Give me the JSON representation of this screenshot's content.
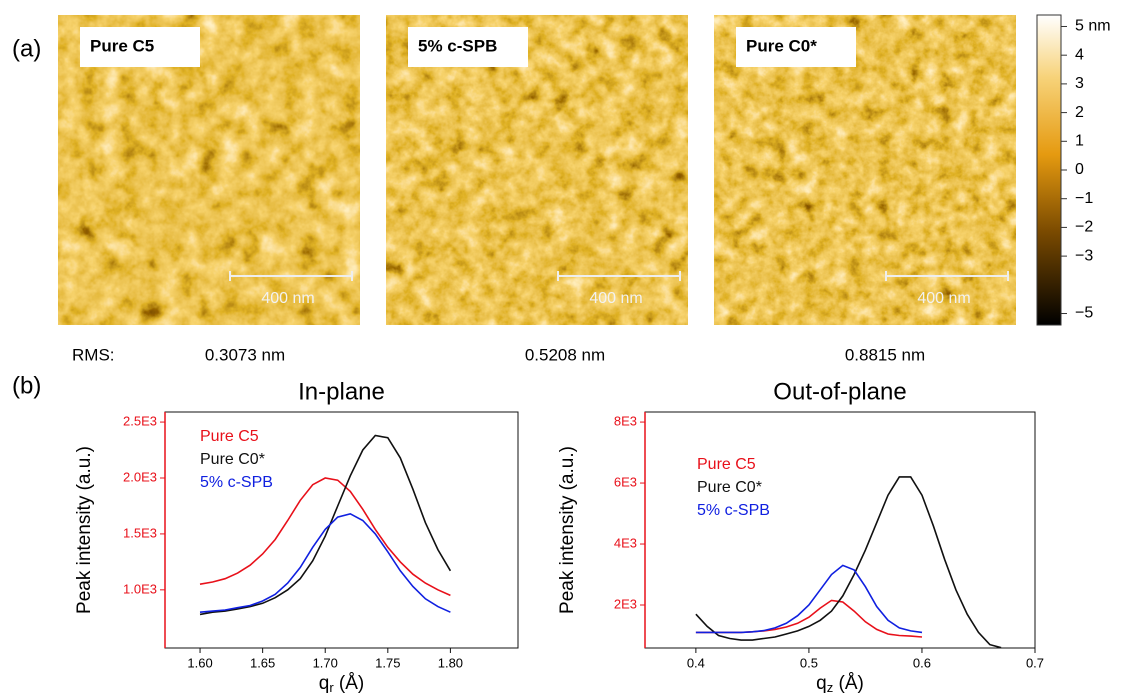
{
  "panel_a": {
    "label": "(a)",
    "rms_label": "RMS:",
    "images": [
      {
        "title": "Pure C5",
        "scale_bar": "400 nm",
        "rms": "0.3073 nm"
      },
      {
        "title": "5% c-SPB",
        "scale_bar": "400 nm",
        "rms": "0.5208 nm"
      },
      {
        "title": "Pure C0*",
        "scale_bar": "400 nm",
        "rms": "0.8815 nm"
      }
    ],
    "colorbar": {
      "ylim": [
        -5.4,
        5.4
      ],
      "ticks": [
        {
          "value": 5,
          "label": "5 nm"
        },
        4,
        3,
        2,
        1,
        0,
        {
          "value": -1,
          "label": "−1"
        },
        {
          "value": -2,
          "label": "−2"
        },
        {
          "value": -3,
          "label": "−3"
        },
        {
          "value": -5,
          "label": "−5"
        }
      ]
    }
  },
  "panel_b": {
    "label": "(b)"
  },
  "chart_data": [
    {
      "type": "line",
      "title": "In-plane",
      "y_label": "Peak intensity (a.u.)",
      "x_label": {
        "text": "q",
        "sub": "r",
        "unit": " (Å)"
      },
      "x": [
        1.6,
        1.61,
        1.62,
        1.63,
        1.64,
        1.65,
        1.66,
        1.67,
        1.68,
        1.69,
        1.7,
        1.71,
        1.72,
        1.73,
        1.74,
        1.75,
        1.76,
        1.77,
        1.78,
        1.79,
        1.8
      ],
      "xlim": [
        1.572,
        1.854
      ],
      "xticks": [
        {
          "value": 1.6,
          "label": "1.60"
        },
        1.65,
        {
          "value": 1.7,
          "label": "1.70"
        },
        1.75,
        {
          "value": 1.8,
          "label": "1.80"
        }
      ],
      "ylim": [
        480,
        2590
      ],
      "yticks": [
        {
          "value": 1000,
          "label": "1.0E3"
        },
        {
          "value": 1500,
          "label": "1.5E3"
        },
        {
          "value": 2000,
          "label": "2.0E3"
        },
        {
          "value": 2500,
          "label": "2.5E3"
        }
      ],
      "axis_color": "#e8101a",
      "series": [
        {
          "name": "Pure C5",
          "color": "#e8101a",
          "values": [
            1050,
            1070,
            1100,
            1150,
            1220,
            1320,
            1450,
            1620,
            1800,
            1940,
            2000,
            1980,
            1880,
            1720,
            1540,
            1380,
            1250,
            1140,
            1060,
            1000,
            950
          ]
        },
        {
          "name": "Pure C0*",
          "color": "#111111",
          "values": [
            780,
            800,
            810,
            830,
            850,
            880,
            930,
            1000,
            1100,
            1260,
            1480,
            1750,
            2020,
            2250,
            2380,
            2360,
            2180,
            1900,
            1600,
            1360,
            1170
          ]
        },
        {
          "name": "5% c-SPB",
          "color": "#1020e0",
          "values": [
            800,
            810,
            820,
            840,
            860,
            900,
            960,
            1060,
            1200,
            1380,
            1540,
            1650,
            1680,
            1620,
            1500,
            1340,
            1170,
            1030,
            920,
            850,
            800
          ]
        }
      ]
    },
    {
      "type": "line",
      "title": "Out-of-plane",
      "y_label": "Peak intensity (a.u.)",
      "x_label": {
        "text": "q",
        "sub": "z",
        "unit": " (Å)"
      },
      "x": [
        0.4,
        0.41,
        0.42,
        0.43,
        0.44,
        0.45,
        0.46,
        0.47,
        0.48,
        0.49,
        0.5,
        0.51,
        0.52,
        0.53,
        0.54,
        0.55,
        0.56,
        0.57,
        0.58,
        0.59,
        0.6,
        0.61,
        0.62,
        0.63,
        0.64,
        0.65,
        0.66,
        0.67,
        0.68,
        0.69,
        0.7
      ],
      "xlim": [
        0.355,
        0.7
      ],
      "xticks": [
        0.4,
        0.5,
        0.6,
        0.7
      ],
      "ylim": [
        590,
        8330
      ],
      "yticks": [
        {
          "value": 2000,
          "label": "2E3"
        },
        {
          "value": 4000,
          "label": "4E3"
        },
        {
          "value": 6000,
          "label": "6E3"
        },
        {
          "value": 8000,
          "label": "8E3"
        }
      ],
      "axis_color": "#e8101a",
      "series": [
        {
          "name": "Pure C5",
          "color": "#e8101a",
          "values": [
            1100,
            1100,
            1100,
            1100,
            1100,
            1120,
            1150,
            1200,
            1280,
            1400,
            1600,
            1900,
            2150,
            2100,
            1800,
            1450,
            1200,
            1050,
            1000,
            980,
            950,
            null,
            null,
            null,
            null,
            null,
            null,
            null,
            null,
            null,
            null
          ]
        },
        {
          "name": "Pure C0*",
          "color": "#111111",
          "values": [
            1700,
            1300,
            1000,
            900,
            850,
            850,
            900,
            950,
            1050,
            1150,
            1300,
            1500,
            1800,
            2300,
            3000,
            3800,
            4700,
            5600,
            6200,
            6200,
            5600,
            4600,
            3500,
            2500,
            1700,
            1100,
            700,
            600,
            null,
            null,
            null
          ]
        },
        {
          "name": "5% c-SPB",
          "color": "#1020e0",
          "values": [
            1100,
            1100,
            1100,
            1100,
            1100,
            1120,
            1160,
            1250,
            1400,
            1650,
            2000,
            2500,
            3000,
            3300,
            3150,
            2600,
            1950,
            1500,
            1250,
            1150,
            1100,
            null,
            null,
            null,
            null,
            null,
            null,
            null,
            null,
            null,
            null
          ]
        }
      ]
    }
  ]
}
